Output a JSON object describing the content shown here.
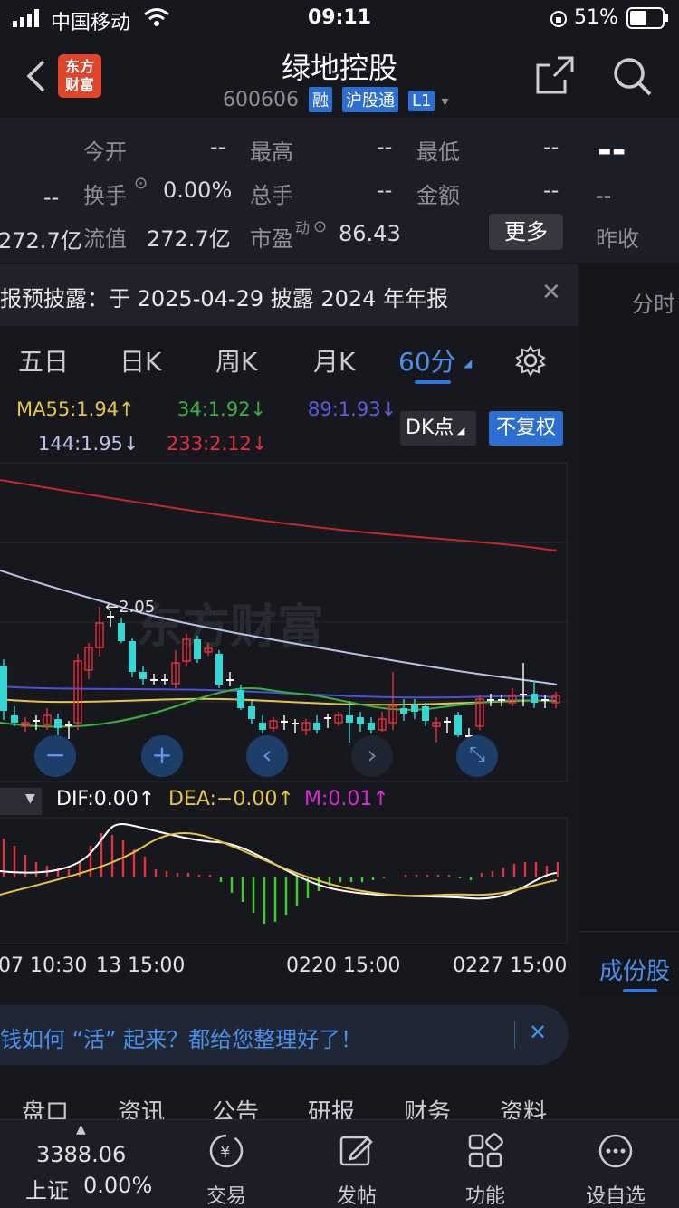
{
  "status": {
    "carrier": "中国移动",
    "time": "09:11",
    "battery": "51%"
  },
  "header": {
    "title": "绿地控股",
    "code": "600606",
    "badges": [
      "融",
      "沪股通",
      "L1"
    ],
    "logo_top": "东方",
    "logo_bottom": "财富"
  },
  "quote": {
    "today_open_label": "今开",
    "today_open_value": "--",
    "high_label": "最高",
    "high_value": "--",
    "low_label": "最低",
    "low_value": "--",
    "big_price": "--",
    "left_dash": "--",
    "turnover_label": "换手",
    "turnover_value": "0.00%",
    "volume_label": "总手",
    "volume_value": "--",
    "amount_label": "金额",
    "amount_value": "--",
    "right_dash": "--",
    "left_cut": "272.7亿",
    "float_label": "流值",
    "float_value": "272.7亿",
    "pe_label": "市盈",
    "pe_sup": "动",
    "pe_value": "86.43",
    "more_label": "更多",
    "prev_close_label": "昨收"
  },
  "notice": {
    "text": "报预披露：于 2025-04-29 披露 2024 年年报"
  },
  "right_col": {
    "time_tab": "分时",
    "component_tab": "成份股"
  },
  "tabs": {
    "items": [
      "五日",
      "日K",
      "周K",
      "月K",
      "60分"
    ],
    "active": "60分"
  },
  "ma": {
    "ma55": "MA55:1.94↑",
    "ma34": "34:1.92↓",
    "ma89": "89:1.93↓",
    "ma144": "144:1.95↓",
    "ma233": "233:2.12↓",
    "dk_label": "DK点",
    "fq_label": "不复权"
  },
  "chart": {
    "max_label": "←2.05",
    "watermark": "东方财富",
    "colors": {
      "up": "#e8303a",
      "down": "#35d5d1",
      "ma233": "#c8262c",
      "ma144": "#b9c3e6",
      "ma89": "#4c4fd8",
      "ma55": "#e3c547",
      "ma34": "#3ab040"
    }
  },
  "macd": {
    "dif": "DIF:0.00↑",
    "dea": "DEA:−0.00↑",
    "m": "M:0.01↑"
  },
  "time_axis": [
    "07 10:30",
    "13 15:00",
    "0220 15:00",
    "0227 15:00"
  ],
  "ad": {
    "text": "钱如何 “活” 起来？都给您整理好了！"
  },
  "subtabs": [
    "盘口",
    "资讯",
    "公告",
    "研报",
    "财务",
    "资料"
  ],
  "bottom": {
    "index_value": "3388.06",
    "index_name": "上证",
    "index_change": "0.00%",
    "items": [
      {
        "label": "交易"
      },
      {
        "label": "发帖"
      },
      {
        "label": "功能"
      },
      {
        "label": "设自选"
      }
    ]
  }
}
